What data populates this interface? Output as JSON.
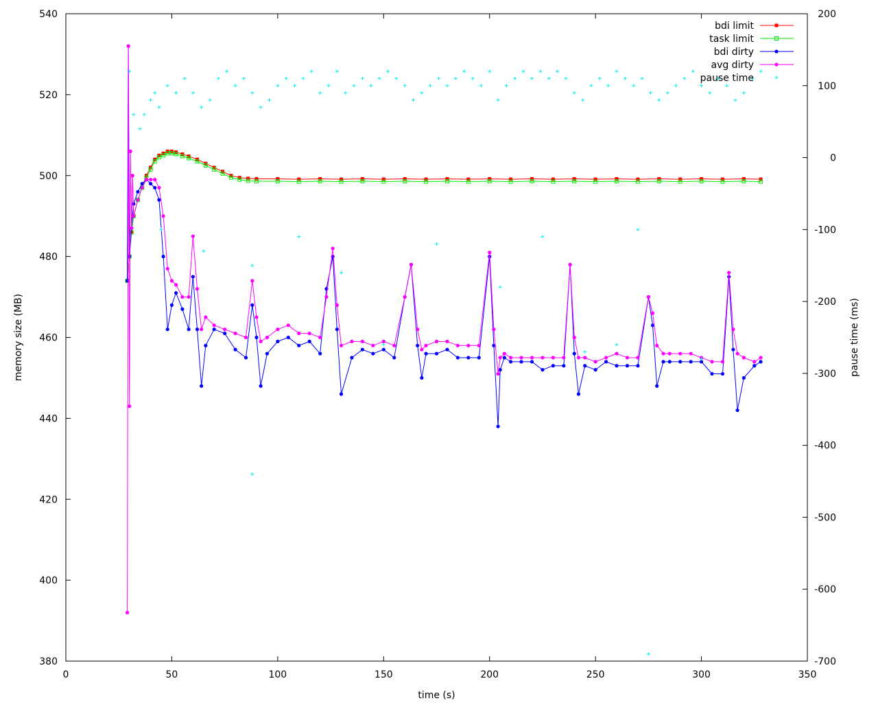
{
  "chart_data": {
    "type": "line",
    "xlabel": "time (s)",
    "ylabel": "memory size (MB)",
    "y2label": "pause time (ms)",
    "xlim": [
      0,
      350
    ],
    "ylim": [
      380,
      540
    ],
    "y2lim": [
      -700,
      200
    ],
    "xticks": [
      0,
      50,
      100,
      150,
      200,
      250,
      300,
      350
    ],
    "yticks": [
      380,
      400,
      420,
      440,
      460,
      480,
      500,
      520,
      540
    ],
    "y2ticks": [
      -700,
      -600,
      -500,
      -400,
      -300,
      -200,
      -100,
      0,
      100,
      200
    ],
    "grid": false,
    "legend_position": "top-right",
    "series": [
      {
        "name": "bdi limit",
        "axis": "y1",
        "color": "#ff0000",
        "marker": "square",
        "style": "linespoints",
        "x": [
          29,
          30,
          31,
          32,
          34,
          36,
          38,
          40,
          42,
          44,
          46,
          48,
          50,
          52,
          55,
          58,
          62,
          66,
          70,
          74,
          78,
          82,
          86,
          90,
          100,
          110,
          120,
          130,
          140,
          150,
          160,
          170,
          180,
          190,
          200,
          210,
          220,
          230,
          240,
          250,
          260,
          270,
          280,
          290,
          300,
          310,
          320,
          328
        ],
        "y": [
          474,
          480,
          486,
          490,
          494,
          497,
          500,
          502,
          504,
          505,
          505.5,
          506,
          506,
          505.8,
          505.3,
          504.8,
          504,
          503,
          502,
          501,
          500,
          499.5,
          499.3,
          499.2,
          499.2,
          499.1,
          499.2,
          499.1,
          499.2,
          499.1,
          499.2,
          499.1,
          499.2,
          499.1,
          499.2,
          499.1,
          499.2,
          499.1,
          499.2,
          499.1,
          499.2,
          499.1,
          499.2,
          499.1,
          499.2,
          499.1,
          499.2,
          499.1
        ]
      },
      {
        "name": "task limit",
        "axis": "y1",
        "color": "#00ee00",
        "marker": "open-square",
        "style": "linespoints",
        "x": [
          29,
          30,
          31,
          32,
          34,
          36,
          38,
          40,
          42,
          44,
          46,
          48,
          50,
          52,
          55,
          58,
          62,
          66,
          70,
          74,
          78,
          82,
          86,
          90,
          100,
          110,
          120,
          130,
          140,
          150,
          160,
          170,
          180,
          190,
          200,
          210,
          220,
          230,
          240,
          250,
          260,
          270,
          280,
          290,
          300,
          310,
          320,
          328
        ],
        "y": [
          474,
          480,
          486,
          490,
          494,
          497,
          499.5,
          501.5,
          503.5,
          504.5,
          505,
          505.5,
          505.5,
          505.3,
          504.8,
          504.3,
          503.5,
          502.5,
          501.5,
          500.5,
          499.5,
          499,
          498.7,
          498.6,
          498.6,
          498.5,
          498.6,
          498.5,
          498.6,
          498.5,
          498.6,
          498.5,
          498.6,
          498.5,
          498.6,
          498.5,
          498.6,
          498.5,
          498.6,
          498.5,
          498.6,
          498.5,
          498.6,
          498.5,
          498.6,
          498.5,
          498.6,
          498.5
        ]
      },
      {
        "name": "bdi dirty",
        "axis": "y1",
        "color": "#0000ff",
        "marker": "filled-circle",
        "style": "linespoints",
        "x": [
          29,
          29.5,
          30,
          31,
          32,
          34,
          36,
          38,
          40,
          42,
          44,
          46,
          48,
          50,
          52,
          55,
          58,
          60,
          62,
          64,
          66,
          70,
          75,
          80,
          85,
          88,
          90,
          92,
          95,
          100,
          105,
          110,
          115,
          120,
          123,
          126,
          128,
          130,
          135,
          140,
          145,
          150,
          155,
          160,
          163,
          166,
          168,
          170,
          175,
          180,
          185,
          190,
          195,
          200,
          202,
          204,
          205,
          207,
          210,
          215,
          220,
          225,
          230,
          235,
          238,
          240,
          242,
          245,
          250,
          255,
          260,
          265,
          270,
          275,
          277,
          279,
          282,
          285,
          290,
          295,
          300,
          305,
          310,
          313,
          315,
          317,
          320,
          325,
          328
        ],
        "y": [
          474,
          532,
          480,
          487,
          493,
          496,
          498,
          499,
          498,
          497,
          494,
          480,
          462,
          468,
          471,
          467,
          462,
          475,
          462,
          448,
          458,
          462,
          461,
          457,
          455,
          468,
          460,
          448,
          456,
          459,
          460,
          458,
          459,
          456,
          472,
          480,
          462,
          446,
          455,
          457,
          456,
          457,
          455,
          470,
          478,
          458,
          450,
          456,
          456,
          457,
          455,
          455,
          455,
          480,
          458,
          438,
          452,
          455,
          454,
          454,
          454,
          452,
          453,
          453,
          478,
          456,
          446,
          453,
          452,
          454,
          453,
          453,
          453,
          470,
          463,
          448,
          454,
          454,
          454,
          454,
          454,
          451,
          451,
          475,
          457,
          442,
          450,
          453,
          454
        ]
      },
      {
        "name": "avg dirty",
        "axis": "y1",
        "color": "#ff00ff",
        "marker": "filled-circle",
        "style": "linespoints",
        "x": [
          29,
          29.5,
          30,
          30.5,
          31,
          31.5,
          32,
          34,
          36,
          38,
          40,
          42,
          44,
          46,
          48,
          50,
          52,
          55,
          58,
          60,
          62,
          64,
          66,
          70,
          75,
          80,
          85,
          88,
          90,
          92,
          95,
          100,
          105,
          110,
          115,
          120,
          123,
          126,
          128,
          130,
          135,
          140,
          145,
          150,
          155,
          160,
          163,
          166,
          168,
          170,
          175,
          180,
          185,
          190,
          195,
          200,
          202,
          204,
          205,
          207,
          210,
          215,
          220,
          225,
          230,
          235,
          238,
          240,
          242,
          245,
          250,
          255,
          260,
          265,
          270,
          275,
          277,
          279,
          282,
          285,
          290,
          295,
          300,
          305,
          310,
          313,
          315,
          317,
          320,
          325,
          328
        ],
        "y": [
          392,
          532,
          443,
          506,
          487,
          500,
          490,
          494,
          497,
          499,
          499,
          499,
          497,
          490,
          477,
          474,
          473,
          470,
          470,
          485,
          472,
          462,
          465,
          463,
          462,
          461,
          460,
          474,
          465,
          459,
          460,
          462,
          463,
          461,
          461,
          460,
          470,
          482,
          468,
          458,
          459,
          459,
          458,
          459,
          458,
          470,
          478,
          462,
          457,
          458,
          459,
          459,
          458,
          458,
          458,
          481,
          462,
          451,
          455,
          456,
          455,
          455,
          455,
          455,
          455,
          455,
          478,
          460,
          455,
          455,
          454,
          455,
          456,
          455,
          455,
          470,
          466,
          458,
          456,
          456,
          456,
          456,
          455,
          454,
          454,
          476,
          462,
          456,
          455,
          454,
          455
        ]
      },
      {
        "name": "pause time",
        "axis": "y2",
        "color": "#00eeee",
        "marker": "plus",
        "style": "points",
        "x": [
          30,
          32,
          35,
          37,
          40,
          42,
          44,
          48,
          52,
          56,
          60,
          64,
          68,
          72,
          76,
          80,
          84,
          88,
          92,
          96,
          100,
          104,
          108,
          112,
          116,
          120,
          124,
          128,
          132,
          136,
          140,
          144,
          148,
          152,
          156,
          160,
          164,
          168,
          172,
          176,
          180,
          184,
          188,
          192,
          196,
          200,
          204,
          208,
          212,
          216,
          220,
          224,
          228,
          232,
          236,
          240,
          244,
          248,
          252,
          256,
          260,
          264,
          268,
          272,
          276,
          280,
          284,
          288,
          292,
          296,
          300,
          304,
          308,
          312,
          316,
          320,
          324,
          328,
          45,
          65,
          88,
          110,
          130,
          150,
          175,
          205,
          225,
          245,
          270,
          300,
          88,
          260,
          275
        ],
        "y": [
          120,
          60,
          40,
          60,
          80,
          90,
          70,
          100,
          90,
          110,
          90,
          70,
          80,
          110,
          120,
          100,
          110,
          90,
          70,
          80,
          100,
          110,
          100,
          110,
          120,
          90,
          100,
          120,
          90,
          100,
          110,
          100,
          110,
          120,
          110,
          100,
          80,
          90,
          100,
          110,
          100,
          110,
          120,
          110,
          100,
          120,
          80,
          100,
          110,
          120,
          110,
          120,
          110,
          120,
          110,
          90,
          80,
          100,
          110,
          100,
          120,
          110,
          100,
          110,
          90,
          80,
          90,
          100,
          110,
          120,
          100,
          90,
          110,
          100,
          80,
          90,
          110,
          120,
          -100,
          -130,
          -150,
          -110,
          -160,
          -260,
          -120,
          -180,
          -110,
          -270,
          -100,
          -280,
          -440,
          -260,
          -690
        ]
      }
    ]
  }
}
